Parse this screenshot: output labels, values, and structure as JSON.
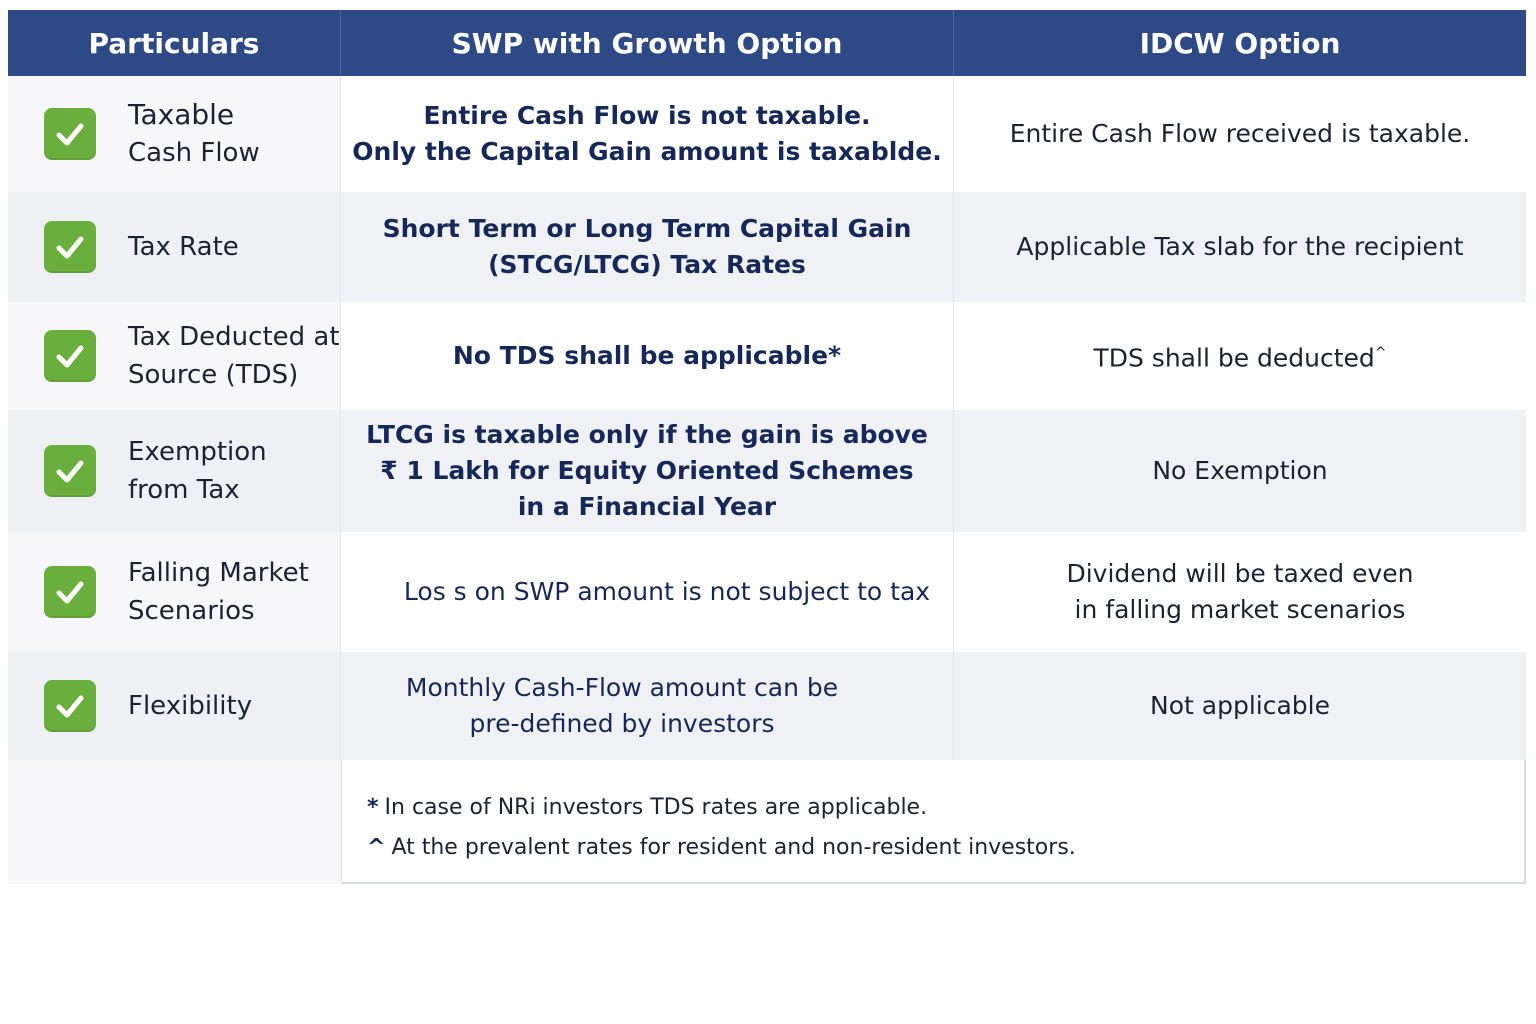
{
  "header": {
    "col1": "Particulars",
    "col2": "SWP with Growth Option",
    "col3": "IDCW Option"
  },
  "rows": [
    {
      "label": [
        "Taxable",
        "Cash Flow"
      ],
      "swp": [
        "Entire Cash Flow is not taxable.",
        "Only the Capital Gain amount is taxablde."
      ],
      "idcw": [
        "Entire Cash Flow received is taxable."
      ]
    },
    {
      "label": [
        "Tax Rate"
      ],
      "swp": [
        "Short Term or Long Term Capital Gain",
        "(STCG/LTCG) Tax Rates"
      ],
      "idcw": [
        "Applicable Tax slab for the recipient"
      ]
    },
    {
      "label": [
        "Tax Deducted at",
        "Source (TDS)"
      ],
      "swp": [
        "No TDS shall be applicable*"
      ],
      "idcw": [
        "TDS shall be deducted"
      ],
      "idcw_mark": "^"
    },
    {
      "label": [
        "Exemption",
        "from Tax"
      ],
      "swp": [
        "LTCG is taxable only if the gain is above",
        "₹ 1 Lakh for Equity Oriented Schemes",
        "in a Financial Year"
      ],
      "idcw": [
        "No Exemption"
      ]
    },
    {
      "label": [
        "Falling Market",
        "Scenarios"
      ],
      "swp": [
        "Los s on SWP amount is not subject to tax"
      ],
      "idcw": [
        "Dividend will be taxed even",
        "in falling market scenarios"
      ]
    },
    {
      "label": [
        "Flexibility"
      ],
      "swp": [
        "Monthly Cash-Flow amount can be",
        "pre-defined by investors"
      ],
      "idcw": [
        "Not applicable"
      ]
    }
  ],
  "footnotes": [
    {
      "mark": "*",
      "text": "In case of NRi investors TDS rates are applicable."
    },
    {
      "mark": "^",
      "text": "At the prevalent rates for resident and non-resident investors."
    }
  ],
  "colors": {
    "header_bg": "#2e4a86",
    "check_bg": "#6aae3e",
    "swp_text": "#16285a"
  }
}
